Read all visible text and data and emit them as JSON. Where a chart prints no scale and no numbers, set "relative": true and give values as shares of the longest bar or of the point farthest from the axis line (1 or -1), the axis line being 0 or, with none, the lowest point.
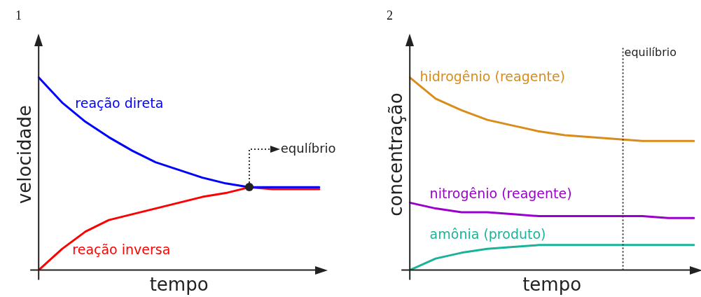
{
  "chart_data": [
    {
      "type": "line",
      "title": "1",
      "xlabel": "tempo",
      "ylabel": "velocidade",
      "relative": true,
      "marker": "none",
      "line_style": "solid",
      "categories": [
        null,
        null,
        null,
        null,
        null,
        null,
        null,
        null,
        null,
        null,
        null,
        null,
        null
      ],
      "series": [
        {
          "name": "reação direta",
          "color": "#0000ff",
          "values": [
            1,
            0.87,
            0.77,
            0.69,
            0.62,
            0.56,
            0.52,
            0.48,
            0.45,
            0.43,
            0.43,
            0.43,
            0.43
          ]
        },
        {
          "name": "reação inversa",
          "color": "#ff0000",
          "values": [
            0,
            0.11,
            0.2,
            0.26,
            0.29,
            0.32,
            0.35,
            0.38,
            0.4,
            0.43,
            0.42,
            0.42,
            0.42
          ]
        }
      ],
      "annotations": [
        "equlíbrio"
      ]
    },
    {
      "type": "line",
      "title": "2",
      "xlabel": "tempo",
      "ylabel": "concentração",
      "relative": true,
      "marker": "none",
      "line_style": "solid",
      "categories": [
        null,
        null,
        null,
        null,
        null,
        null,
        null,
        null,
        null,
        null,
        null,
        null
      ],
      "series": [
        {
          "name": "hidrogênio (reagente)",
          "color": "#d98c1a",
          "values": [
            1,
            0.89,
            0.83,
            0.78,
            0.75,
            0.72,
            0.7,
            0.69,
            0.68,
            0.67,
            0.67,
            0.67
          ]
        },
        {
          "name": "nitrogênio (reagente)",
          "color": "#9900cc",
          "values": [
            0.35,
            0.32,
            0.3,
            0.3,
            0.29,
            0.28,
            0.28,
            0.28,
            0.28,
            0.28,
            0.27,
            0.27
          ]
        },
        {
          "name": "amônia (produto)",
          "color": "#1ab39a",
          "values": [
            0,
            0.06,
            0.09,
            0.11,
            0.12,
            0.13,
            0.13,
            0.13,
            0.13,
            0.13,
            0.13,
            0.13
          ]
        }
      ],
      "annotations": [
        "equilíbrio"
      ]
    }
  ]
}
